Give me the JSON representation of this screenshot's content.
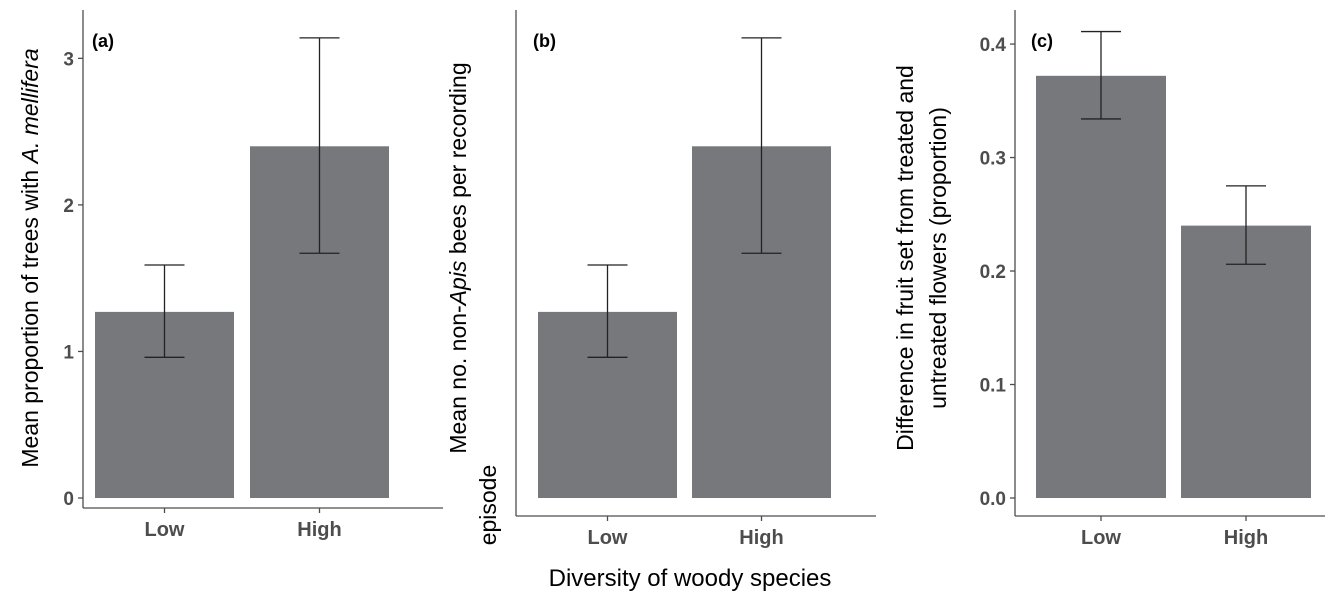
{
  "xlabel": "Diversity of woody species",
  "chart_data": [
    {
      "type": "bar",
      "panel": "(a)",
      "categories": [
        "Low",
        "High"
      ],
      "values": [
        1.27,
        2.4
      ],
      "error_low": [
        0.96,
        1.67
      ],
      "error_high": [
        1.59,
        3.14
      ],
      "ylabel_parts": [
        {
          "text": "Mean proportion of trees with ",
          "italic": false
        },
        {
          "text": "A. mellifera",
          "italic": true
        }
      ],
      "ylabel_lines": [],
      "yticks": [
        0,
        1,
        2,
        3
      ],
      "ytick_labels": [
        "0",
        "1",
        "2",
        "3"
      ],
      "ylim": [
        0,
        3.33
      ],
      "bar_color": "#77787b"
    },
    {
      "type": "bar",
      "panel": "(b)",
      "categories": [
        "Low",
        "High"
      ],
      "values": [
        1.27,
        2.4
      ],
      "error_low": [
        0.96,
        1.67
      ],
      "error_high": [
        1.59,
        3.14
      ],
      "ylabel_parts": [
        {
          "text": "Mean no. non-",
          "italic": false
        },
        {
          "text": "Apis",
          "italic": true
        },
        {
          "text": "  bees per recording",
          "italic": false
        }
      ],
      "ylabel_lines": [
        "episode"
      ],
      "yticks": [],
      "ytick_labels": [],
      "ylim": [
        0,
        3.33
      ],
      "bar_color": "#77787b"
    },
    {
      "type": "bar",
      "panel": "(c)",
      "categories": [
        "Low",
        "High"
      ],
      "values": [
        0.372,
        0.24
      ],
      "error_low": [
        0.334,
        0.206
      ],
      "error_high": [
        0.411,
        0.275
      ],
      "ylabel_parts": [
        {
          "text": "Difference in fruit set from treated and",
          "italic": false
        }
      ],
      "ylabel_lines": [
        "untreated flowers (proportion)"
      ],
      "yticks": [
        0.0,
        0.1,
        0.2,
        0.3,
        0.4
      ],
      "ytick_labels": [
        "0.0",
        "0.1",
        "0.2",
        "0.3",
        "0.4"
      ],
      "ylim": [
        0,
        0.43
      ],
      "bar_color": "#77787b"
    }
  ]
}
